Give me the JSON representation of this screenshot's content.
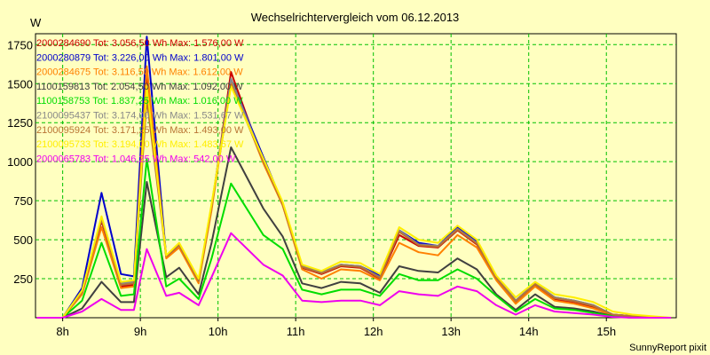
{
  "chart_data": {
    "type": "line",
    "title": "Wechselrichtervergleich vom 06.12.2013",
    "ylabel": "W",
    "xlabel": "",
    "footer": "SunnyReport pixit",
    "ylim": [
      0,
      1820
    ],
    "xlim": [
      7.65,
      15.9
    ],
    "yticks": [
      250,
      500,
      750,
      1000,
      1250,
      1500,
      1750
    ],
    "ytick_labels": [
      "250",
      "500",
      "750",
      "1000",
      "1250",
      "1500",
      "1750"
    ],
    "xticks": [
      8,
      9,
      10,
      11,
      12,
      13,
      14,
      15
    ],
    "xtick_labels": [
      "8h",
      "9h",
      "10h",
      "11h",
      "12h",
      "13h",
      "14h",
      "15h"
    ],
    "grid": true,
    "colors": {
      "background": "#ffffc0",
      "grid": "#00c000"
    },
    "x": [
      7.667,
      7.917,
      8.0,
      8.25,
      8.5,
      8.75,
      8.917,
      9.083,
      9.333,
      9.5,
      9.75,
      9.917,
      10.167,
      10.583,
      10.833,
      11.083,
      11.333,
      11.583,
      11.833,
      12.083,
      12.333,
      12.583,
      12.833,
      13.083,
      13.333,
      13.583,
      13.833,
      14.083,
      14.333,
      14.583,
      14.833,
      15.083,
      15.333,
      15.583,
      15.833
    ],
    "series": [
      {
        "name": "2000284690",
        "legend": "2000284690 Tot: 3.056,50 Wh Max: 1.576,00 W",
        "color": "#cc0000",
        "values": [
          0,
          0,
          0,
          160,
          620,
          200,
          210,
          1575,
          390,
          450,
          230,
          700,
          1575,
          1000,
          720,
          320,
          280,
          330,
          320,
          250,
          530,
          460,
          450,
          560,
          470,
          250,
          100,
          210,
          120,
          100,
          70,
          20,
          10,
          0,
          0
        ]
      },
      {
        "name": "2000280879",
        "legend": "2000280879 Tot: 3.226,00 Wh Max: 1.801,00 W",
        "color": "#0000cc",
        "values": [
          0,
          0,
          0,
          190,
          800,
          280,
          265,
          1801,
          390,
          470,
          240,
          710,
          1530,
          1030,
          730,
          330,
          290,
          340,
          330,
          270,
          560,
          480,
          460,
          580,
          490,
          260,
          110,
          220,
          130,
          110,
          80,
          20,
          10,
          0,
          0
        ]
      },
      {
        "name": "2000284675",
        "legend": "2000284675 Tot: 3.116,50 Wh Max: 1.612,00 W",
        "color": "#ff8000",
        "values": [
          0,
          0,
          0,
          150,
          580,
          190,
          200,
          1612,
          380,
          450,
          220,
          690,
          1520,
          990,
          720,
          310,
          250,
          310,
          300,
          240,
          480,
          420,
          400,
          530,
          450,
          240,
          90,
          200,
          110,
          90,
          60,
          15,
          5,
          0,
          0
        ]
      },
      {
        "name": "1100159813",
        "legend": "1100159813 Tot: 2.054,50 Wh Max: 1.092,00 W",
        "color": "#404040",
        "values": [
          0,
          0,
          0,
          60,
          230,
          100,
          100,
          870,
          260,
          320,
          150,
          480,
          1092,
          700,
          520,
          220,
          190,
          230,
          220,
          160,
          330,
          300,
          290,
          380,
          310,
          150,
          50,
          150,
          70,
          60,
          40,
          10,
          0,
          0,
          0
        ]
      },
      {
        "name": "1100158753",
        "legend": "1100158753 Tot: 1.837,25 Wh Max: 1.016,00 W",
        "color": "#00dd00",
        "values": [
          0,
          0,
          0,
          110,
          480,
          140,
          150,
          1016,
          200,
          250,
          120,
          380,
          860,
          530,
          440,
          180,
          150,
          180,
          180,
          140,
          280,
          240,
          240,
          310,
          250,
          140,
          40,
          120,
          60,
          50,
          30,
          10,
          0,
          0,
          0
        ]
      },
      {
        "name": "2100095437",
        "legend": "2100095437 Tot: 3.174,00 Wh Max: 1.531,67 W",
        "color": "#888888",
        "values": [
          0,
          0,
          0,
          170,
          640,
          220,
          230,
          1450,
          400,
          470,
          240,
          720,
          1531,
          1010,
          730,
          330,
          290,
          340,
          330,
          260,
          560,
          470,
          460,
          570,
          480,
          260,
          110,
          220,
          130,
          110,
          80,
          20,
          10,
          0,
          0
        ]
      },
      {
        "name": "2100095924",
        "legend": "2100095924 Tot: 3.171,25 Wh Max: 1.493,00 W",
        "color": "#b87333",
        "values": [
          0,
          0,
          0,
          165,
          630,
          210,
          220,
          1400,
          395,
          465,
          235,
          715,
          1493,
          1005,
          725,
          325,
          285,
          335,
          325,
          255,
          550,
          465,
          455,
          565,
          475,
          255,
          105,
          215,
          125,
          105,
          75,
          20,
          10,
          0,
          0
        ]
      },
      {
        "name": "2100095733",
        "legend": "2100095733 Tot: 3.194,00 Wh Max: 1.483,67 W",
        "color": "#ffee00",
        "values": [
          0,
          0,
          0,
          175,
          650,
          230,
          240,
          1483,
          400,
          480,
          250,
          730,
          1483,
          1020,
          740,
          340,
          300,
          360,
          350,
          280,
          580,
          500,
          480,
          590,
          500,
          270,
          130,
          230,
          150,
          130,
          100,
          40,
          20,
          10,
          0
        ]
      },
      {
        "name": "2000065783",
        "legend": "2000065783 Tot: 1.046,25 Wh Max: 542,00 W",
        "color": "#ee00ee",
        "values": [
          0,
          0,
          0,
          40,
          120,
          50,
          50,
          440,
          140,
          160,
          80,
          260,
          542,
          340,
          270,
          110,
          100,
          110,
          110,
          80,
          170,
          150,
          140,
          200,
          170,
          80,
          20,
          80,
          40,
          30,
          20,
          5,
          0,
          0,
          0
        ]
      }
    ]
  }
}
